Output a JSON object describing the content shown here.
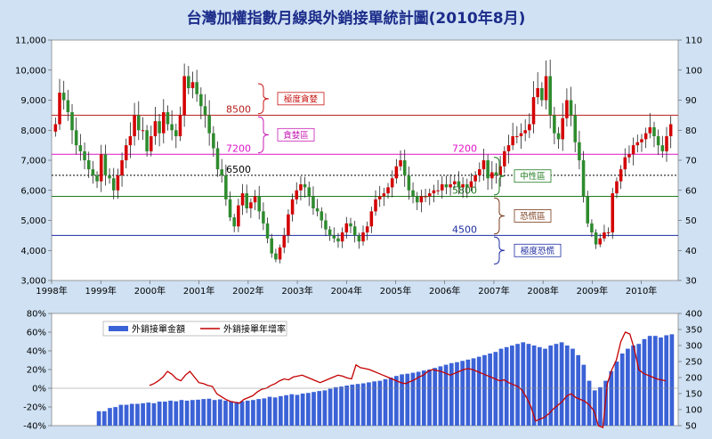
{
  "title": "台灣加權指數月線與外銷接單統計圖(2010年8月)",
  "colors": {
    "background": "#cfe1f3",
    "plot_bg": "#ffffff",
    "up_candle": "#d40000",
    "down_candle": "#2e8b2e",
    "bar_blue": "#3b62d6",
    "growth_line": "#c40000"
  },
  "chart_data": [
    {
      "type": "candlestick",
      "title": "台灣加權指數月線與外銷接單統計圖(2010年8月)",
      "x_tick_labels": [
        "1998年",
        "1999年",
        "2000年",
        "2001年",
        "2002年",
        "2003年",
        "2004年",
        "2005年",
        "2006年",
        "2007年",
        "2008年",
        "2009年",
        "2010年"
      ],
      "y_left_ticks": [
        "3,000",
        "4,000",
        "5,000",
        "6,000",
        "7,000",
        "8,000",
        "9,000",
        "10,000",
        "11,000"
      ],
      "y_right_ticks": [
        "30",
        "40",
        "50",
        "60",
        "70",
        "80",
        "90",
        "100",
        "110"
      ],
      "ylim": [
        3000,
        11000
      ],
      "close_series": [
        8200,
        9250,
        9000,
        8600,
        8000,
        7500,
        7300,
        7000,
        6700,
        6500,
        6300,
        7200,
        6500,
        6400,
        6000,
        6500,
        7000,
        7500,
        7800,
        8500,
        8000,
        8000,
        7300,
        7800,
        8300,
        7900,
        8600,
        8200,
        8000,
        7800,
        8500,
        9800,
        9400,
        9600,
        9200,
        8800,
        8500,
        7900,
        7400,
        6700,
        6500,
        5700,
        5100,
        4800,
        5500,
        5900,
        5400,
        5600,
        5800,
        5300,
        4900,
        4400,
        3900,
        3700,
        4100,
        4500,
        5200,
        5700,
        6000,
        6200,
        6100,
        5800,
        5400,
        5300,
        5000,
        4700,
        4500,
        4400,
        4300,
        4600,
        4900,
        4800,
        4500,
        4300,
        4600,
        4800,
        5300,
        5700,
        5800,
        5900,
        6100,
        6400,
        6800,
        7000,
        6500,
        6000,
        5800,
        5600,
        5800,
        5800,
        5900,
        6000,
        6000,
        6200,
        6100,
        6200,
        6300,
        6100,
        6200,
        6100,
        6300,
        6500,
        6700,
        7000,
        6400,
        6600,
        6500,
        6800,
        7300,
        7500,
        7800,
        7800,
        7900,
        8000,
        8200,
        9100,
        9400,
        9000,
        9800,
        8500,
        7900,
        7700,
        8400,
        9000,
        8500,
        7600,
        7000,
        5800,
        4900,
        4600,
        4200,
        4400,
        4600,
        4600,
        5900,
        6300,
        6700,
        7100,
        7200,
        7500,
        7600,
        7700,
        7900,
        8100,
        7800,
        7500,
        7300,
        7800,
        8200
      ],
      "levels": [
        {
          "value": 8500,
          "label": "8500",
          "color": "#b81c1c"
        },
        {
          "value": 7200,
          "label": "7200",
          "color": "#e014c8"
        },
        {
          "value": 6500,
          "label": "6500",
          "color": "#000000"
        },
        {
          "value": 5800,
          "label": "5800",
          "color": "#1e7a1e"
        },
        {
          "value": 4500,
          "label": "4500",
          "color": "#1c2ca0"
        }
      ],
      "extra_labels": [
        {
          "text": "7200",
          "color": "#e014c8"
        }
      ],
      "zones": [
        {
          "label": "極度貪婪",
          "color": "#c81414"
        },
        {
          "label": "貪婪區",
          "color": "#c81cb4"
        },
        {
          "label": "中性區",
          "color": "#1e7a1e"
        },
        {
          "label": "恐慌區",
          "color": "#7a3b1a"
        },
        {
          "label": "極度恐慌",
          "color": "#1c2ca0"
        }
      ]
    },
    {
      "type": "bar+line",
      "y_left_ticks": [
        "80%",
        "60%",
        "40%",
        "20%",
        "0%",
        "-20%",
        "-40%"
      ],
      "y_right_ticks": [
        "400",
        "350",
        "300",
        "250",
        "200",
        "150",
        "100",
        "50"
      ],
      "ylim_left": [
        -40,
        80
      ],
      "ylim_right": [
        50,
        400
      ],
      "series": [
        {
          "name": "外銷接單金額",
          "type": "bar",
          "values": [
            95,
            95,
            105,
            108,
            115,
            115,
            118,
            118,
            120,
            122,
            120,
            125,
            125,
            128,
            126,
            130,
            128,
            130,
            131,
            133,
            134,
            130,
            132,
            128,
            126,
            124,
            126,
            128,
            130,
            133,
            135,
            140,
            138,
            142,
            145,
            148,
            146,
            150,
            152,
            155,
            158,
            160,
            165,
            170,
            172,
            175,
            178,
            180,
            182,
            185,
            188,
            190,
            195,
            200,
            205,
            210,
            212,
            215,
            218,
            222,
            225,
            230,
            235,
            240,
            245,
            248,
            252,
            256,
            260,
            265,
            270,
            275,
            280,
            290,
            295,
            300,
            305,
            310,
            305,
            300,
            295,
            290,
            300,
            305,
            310,
            300,
            290,
            270,
            240,
            190,
            160,
            170,
            190,
            220,
            250,
            275,
            290,
            300,
            305,
            320,
            330,
            330,
            325,
            332,
            335
          ]
        },
        {
          "name": "外銷接單年增率",
          "type": "line",
          "values": [
            3,
            5,
            8,
            12,
            18,
            15,
            10,
            8,
            14,
            18,
            12,
            6,
            5,
            3,
            2,
            -6,
            -9,
            -12,
            -14,
            -15,
            -16,
            -12,
            -10,
            -8,
            -4,
            -1,
            0,
            3,
            5,
            8,
            10,
            9,
            12,
            13,
            14,
            12,
            10,
            8,
            6,
            8,
            10,
            12,
            14,
            13,
            11,
            10,
            25,
            22,
            21,
            20,
            18,
            16,
            14,
            12,
            10,
            8,
            6,
            5,
            7,
            9,
            12,
            14,
            18,
            20,
            19,
            18,
            16,
            14,
            16,
            18,
            20,
            21,
            20,
            18,
            16,
            14,
            12,
            10,
            8,
            9,
            6,
            4,
            2,
            -2,
            -10,
            -20,
            -35,
            -33,
            -31,
            -27,
            -22,
            -18,
            -14,
            -8,
            -6,
            -10,
            -12,
            -14,
            -18,
            -24,
            -40,
            -42,
            5,
            20,
            30,
            50,
            60,
            58,
            42,
            20,
            16,
            14,
            12,
            10,
            9,
            8
          ]
        }
      ]
    }
  ]
}
